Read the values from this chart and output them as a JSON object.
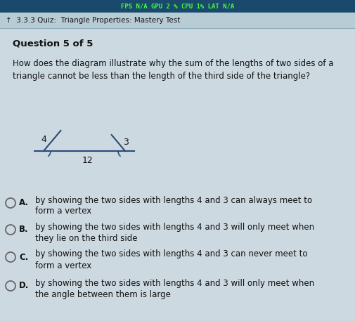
{
  "bg_color": "#cdd9e0",
  "header_bar_color": "#1a4a6b",
  "header_text": "FPS N/A GPU 2 % CPU 1% LAT N/A",
  "header_text_color": "#44ff44",
  "nav_bg_color": "#b8ccd6",
  "nav_text": "↑  3.3.3 Quiz:  Triangle Properties: Mastery Test",
  "nav_text_color": "#111111",
  "question_label": "Question 5 of 5",
  "question_text": "How does the diagram illustrate why the sum of the lengths of two sides of a\ntriangle cannot be less than the length of the third side of the triangle?",
  "diagram_line_color": "#2a4a7a",
  "diagram_label_color": "#111111",
  "choices": [
    {
      "letter": "A.",
      "text": "by showing the two sides with lengths 4 and 3 can always meet to\nform a vertex"
    },
    {
      "letter": "B.",
      "text": "by showing the two sides with lengths 4 and 3 will only meet when\nthey lie on the third side"
    },
    {
      "letter": "C.",
      "text": "by showing the two sides with lengths 4 and 3 can never meet to\nform a vertex"
    },
    {
      "letter": "D.",
      "text": "by showing the two sides with lengths 4 and 3 will only meet when\nthe angle between them is large"
    }
  ],
  "choice_text_color": "#111111",
  "circle_color": "#666666",
  "figwidth": 5.06,
  "figheight": 4.57,
  "dpi": 100
}
